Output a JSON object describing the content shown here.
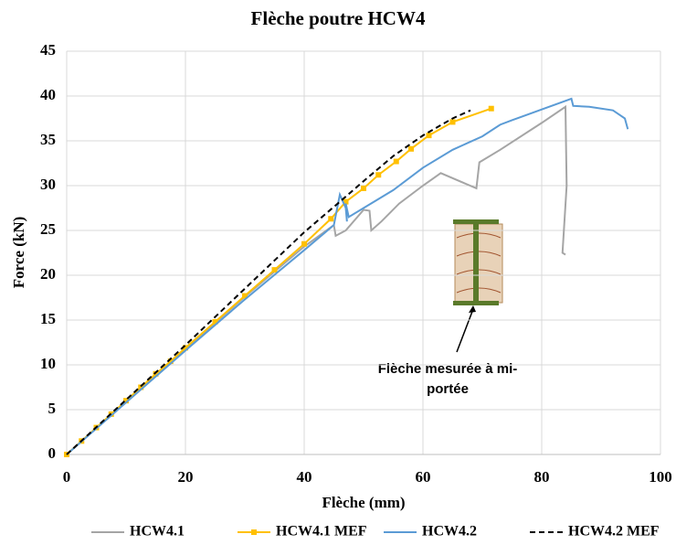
{
  "chart_data": {
    "type": "line",
    "title": "Flèche poutre HCW4",
    "x_label": "Flèche (mm)",
    "y_label": "Force (kN)",
    "xlim": [
      0,
      100
    ],
    "xticks": [
      0,
      20,
      40,
      60,
      80,
      100
    ],
    "ylim": [
      0,
      45
    ],
    "yticks": [
      0,
      5,
      10,
      15,
      20,
      25,
      30,
      35,
      40,
      45
    ],
    "grid": true,
    "annotation": [
      "Flèche mesurée à mi-",
      "portée"
    ],
    "series": [
      {
        "name": "HCW4.1",
        "color": "#a5a5a5",
        "x": [
          0,
          10,
          20,
          30,
          40,
          45,
          45.3,
          47,
          50,
          51,
          51.3,
          53,
          56,
          60,
          63,
          69,
          69.5,
          73,
          80,
          84,
          84.2,
          83.5,
          84
        ],
        "values": [
          0,
          5.9,
          11.8,
          17.6,
          23.2,
          25.6,
          24.4,
          25,
          27.3,
          27.2,
          25,
          26,
          28,
          30,
          31.4,
          29.7,
          32.6,
          34,
          37,
          38.8,
          30,
          22.5,
          22.3
        ]
      },
      {
        "name": "HCW4.1 MEF",
        "color": "#ffc000",
        "marker": "square",
        "x": [
          0,
          2.5,
          5,
          7.5,
          10,
          12.5,
          15,
          17.5,
          20,
          25,
          30,
          35,
          40,
          44.5,
          47,
          50,
          52.5,
          55.5,
          58,
          61,
          65,
          71.5
        ],
        "values": [
          0,
          1.5,
          3,
          4.5,
          6,
          7.5,
          9,
          10.4,
          11.9,
          14.8,
          17.7,
          20.6,
          23.5,
          26.3,
          28.2,
          29.7,
          31.2,
          32.7,
          34.1,
          35.6,
          37.1,
          38.6
        ]
      },
      {
        "name": "HCW4.2",
        "color": "#5b9bd5",
        "x": [
          0,
          10,
          20,
          30,
          40,
          45,
          46,
          47,
          47.2,
          47,
          47.5,
          50,
          55,
          60,
          65,
          70,
          73,
          75,
          80,
          85,
          85.3,
          88,
          92,
          94,
          94.5
        ],
        "values": [
          0,
          5.8,
          11.6,
          17.3,
          22.8,
          25.6,
          29,
          27.5,
          26,
          28,
          26.5,
          27.5,
          29.5,
          32,
          34,
          35.5,
          36.8,
          37.3,
          38.5,
          39.7,
          38.9,
          38.8,
          38.4,
          37.5,
          36.3
        ]
      },
      {
        "name": "HCW4.2 MEF",
        "color": "#000000",
        "dashed": true,
        "x": [
          0,
          10,
          20,
          30,
          40,
          46,
          50,
          55,
          60,
          65,
          68
        ],
        "values": [
          0,
          6.1,
          12.2,
          18.5,
          24.8,
          28.2,
          30.5,
          33.3,
          35.6,
          37.5,
          38.4
        ]
      }
    ]
  }
}
